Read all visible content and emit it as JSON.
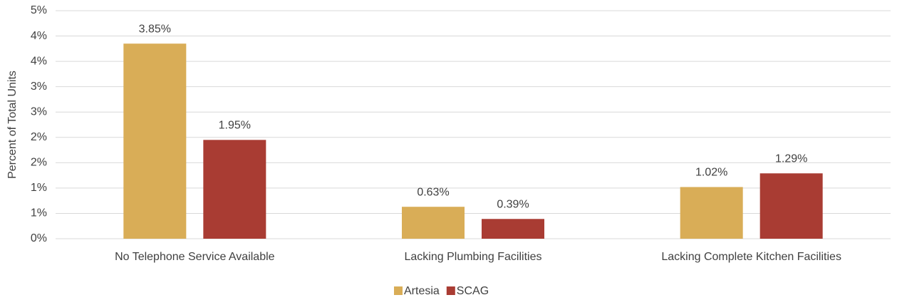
{
  "chart_data": {
    "type": "bar",
    "y_label": "Percent of Total Units",
    "categories": [
      "No Telephone Service Available",
      "Lacking Plumbing Facilities",
      "Lacking Complete Kitchen Facilities"
    ],
    "series": [
      {
        "name": "Artesia",
        "color": "#d9ad57",
        "values": [
          3.85,
          0.63,
          1.02
        ],
        "value_labels": [
          "3.85%",
          "0.63%",
          "1.02%"
        ]
      },
      {
        "name": "SCAG",
        "color": "#a93c33",
        "values": [
          1.95,
          0.39,
          1.29
        ],
        "value_labels": [
          "1.95%",
          "0.39%",
          "1.29%"
        ]
      }
    ],
    "ylim": [
      0,
      4.5
    ],
    "yticks": [
      {
        "value": 0,
        "label": "0%"
      },
      {
        "value": 0.5,
        "label": "1%"
      },
      {
        "value": 1,
        "label": "1%"
      },
      {
        "value": 1.5,
        "label": "2%"
      },
      {
        "value": 2,
        "label": "2%"
      },
      {
        "value": 2.5,
        "label": "3%"
      },
      {
        "value": 3,
        "label": "3%"
      },
      {
        "value": 3.5,
        "label": "4%"
      },
      {
        "value": 4,
        "label": "4%"
      },
      {
        "value": 4.5,
        "label": "5%"
      }
    ],
    "grid": true,
    "legend": "bottom"
  }
}
